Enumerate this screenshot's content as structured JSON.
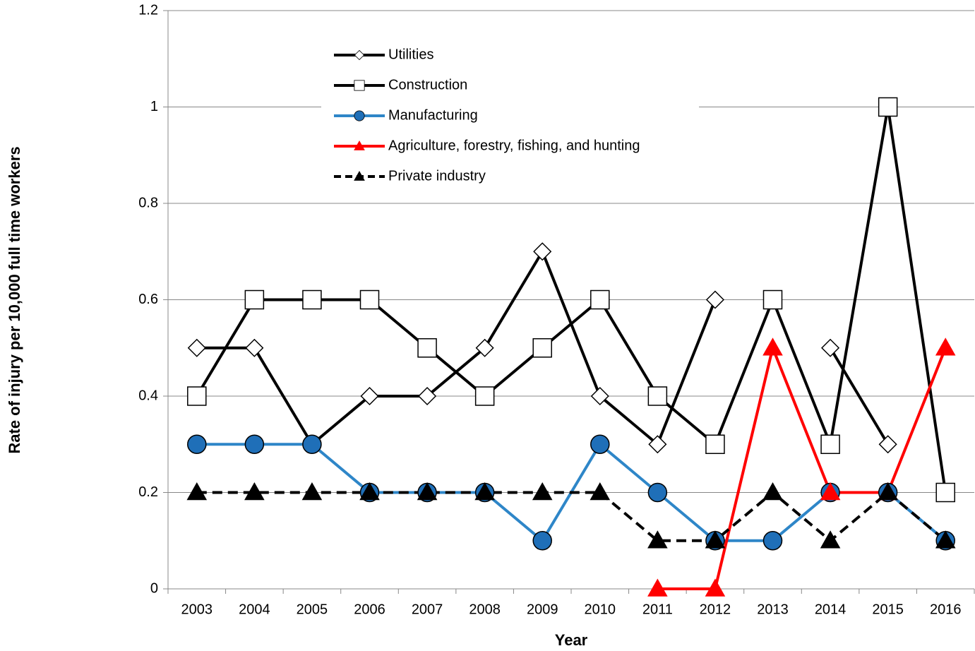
{
  "chart_data": {
    "type": "line",
    "x_label": "Year",
    "y_label": "Rate of injury per 10,000 full time workers",
    "categories": [
      "2003",
      "2004",
      "2005",
      "2006",
      "2007",
      "2008",
      "2009",
      "2010",
      "2011",
      "2012",
      "2013",
      "2014",
      "2015",
      "2016"
    ],
    "ylim": [
      0,
      1.2
    ],
    "yticks": [
      0,
      0.2,
      0.4,
      0.6,
      0.8,
      1,
      1.2
    ],
    "grid": true,
    "legend": "top",
    "series": [
      {
        "name": "Utilities",
        "color": "#000000",
        "marker": "diamond",
        "marker_fill": "#ffffff",
        "dashed": false,
        "values": [
          0.5,
          0.5,
          0.3,
          0.4,
          0.4,
          0.5,
          0.7,
          0.4,
          0.3,
          0.6,
          null,
          0.5,
          0.3,
          null
        ]
      },
      {
        "name": "Construction",
        "color": "#000000",
        "marker": "square",
        "marker_fill": "#ffffff",
        "dashed": false,
        "values": [
          0.4,
          0.6,
          0.6,
          0.6,
          0.5,
          0.4,
          0.5,
          0.6,
          0.4,
          0.3,
          0.6,
          0.3,
          1,
          0.2
        ]
      },
      {
        "name": "Manufacturing",
        "color": "#2e86c8",
        "marker": "circle",
        "marker_fill": "#1f6fb8",
        "dashed": false,
        "values": [
          0.3,
          0.3,
          0.3,
          0.2,
          0.2,
          0.2,
          0.1,
          0.3,
          0.2,
          0.1,
          0.1,
          0.2,
          0.2,
          0.1
        ]
      },
      {
        "name": "Agriculture, forestry, fishing, and hunting",
        "color": "#ff0000",
        "marker": "triangle",
        "marker_fill": "#ff0000",
        "dashed": false,
        "values": [
          null,
          null,
          null,
          null,
          null,
          null,
          null,
          null,
          0,
          0,
          0.5,
          0.2,
          0.2,
          0.5
        ]
      },
      {
        "name": "Private industry",
        "color": "#000000",
        "marker": "triangle",
        "marker_fill": "#000000",
        "dashed": true,
        "values": [
          0.2,
          0.2,
          0.2,
          0.2,
          0.2,
          0.2,
          0.2,
          0.2,
          0.1,
          0.1,
          0.2,
          0.1,
          0.2,
          0.1
        ]
      }
    ]
  }
}
